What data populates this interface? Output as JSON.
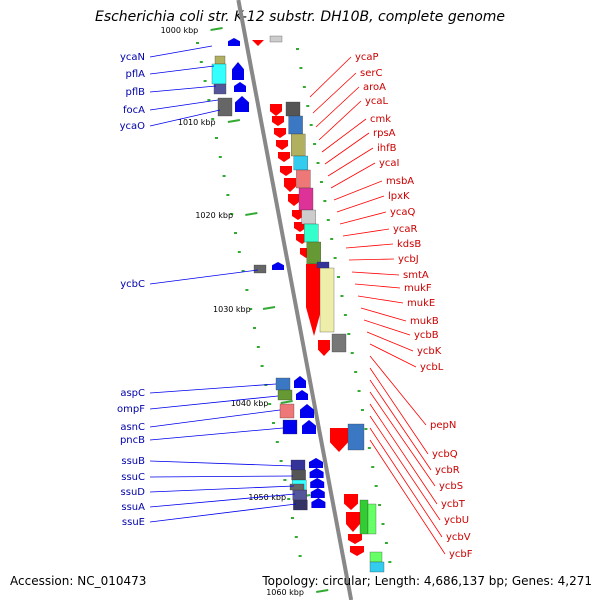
{
  "title": "Escherichia coli str. K-12 substr. DH10B, complete genome",
  "accession": "Accession: NC_010473",
  "topology": "Topology: circular; Length: 4,686,137 bp; Genes: 4,271",
  "colors": {
    "backbone": "#888888",
    "forward_strand": "#ff0000",
    "reverse_strand": "#0000ee",
    "label_forward": "#cc0000",
    "label_reverse": "#0000aa",
    "tick": "#33aa33"
  },
  "ticks": [
    "1000 kbp",
    "1010 kbp",
    "1020 kbp",
    "1030 kbp",
    "1040 kbp",
    "1050 kbp",
    "1060 kbp"
  ],
  "genes_left": [
    "ycaN",
    "pflA",
    "pflB",
    "focA",
    "ycaO",
    "ycbC",
    "aspC",
    "ompF",
    "asnC",
    "pncB",
    "ssuB",
    "ssuC",
    "ssuD",
    "ssuA",
    "ssuE"
  ],
  "genes_right": [
    "ycaP",
    "serC",
    "aroA",
    "ycaL",
    "cmk",
    "rpsA",
    "ihfB",
    "ycaI",
    "msbA",
    "lpxK",
    "ycaQ",
    "ycaR",
    "kdsB",
    "ycbJ",
    "smtA",
    "mukF",
    "mukE",
    "mukB",
    "ycbB",
    "ycbK",
    "ycbL",
    "pepN",
    "ycbQ",
    "ycbR",
    "ycbS",
    "ycbT",
    "ycbU",
    "ycbV",
    "ycbF"
  ]
}
